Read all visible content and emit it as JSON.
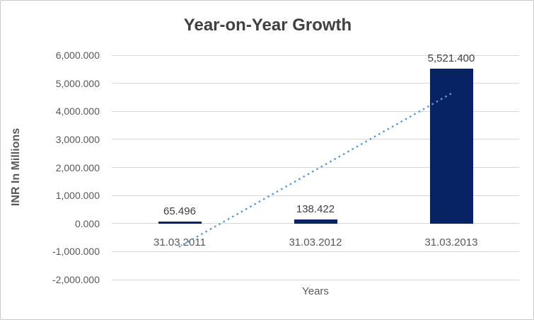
{
  "chart_data": {
    "type": "bar",
    "title": "Year-on-Year Growth",
    "xlabel": "Years",
    "ylabel": "INR In Millions",
    "categories": [
      "31.03.2011",
      "31.03.2012",
      "31.03.2013"
    ],
    "values": [
      65.496,
      138.422,
      5521.4
    ],
    "data_labels": [
      "65.496",
      "138.422",
      "5,521.400"
    ],
    "ylim": [
      -2000,
      6000
    ],
    "ytick_step": 1000,
    "ytick_labels": [
      "6,000.000",
      "5,000.000",
      "4,000.000",
      "3,000.000",
      "2,000.000",
      "1,000.000",
      "0.000",
      "-1,000.000",
      "-2,000.000"
    ],
    "grid": true,
    "legend": "none",
    "trendline": {
      "style": "dotted",
      "type": "linear",
      "color": "#5b9bd5",
      "start": {
        "category_index": 0,
        "value": -820
      },
      "end": {
        "category_index": 2,
        "value": 4636
      }
    },
    "colors": {
      "bar": "#082363",
      "gridline": "#d9d9d9",
      "title_text": "#404040",
      "axis_text": "#595959",
      "border": "#c9c9c9"
    }
  }
}
